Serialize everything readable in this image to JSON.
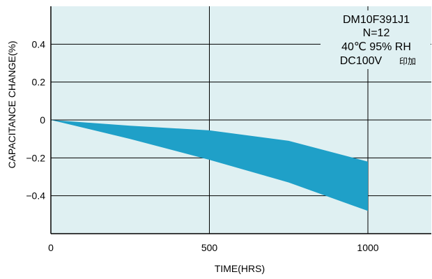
{
  "chart_data": {
    "type": "area",
    "xlabel": "TIME(HRS)",
    "ylabel": "CAPACITANCE CHANGE(%)",
    "xlim": [
      0,
      1200
    ],
    "ylim": [
      -0.6,
      0.6
    ],
    "x_ticks": [
      "0",
      "500",
      "1000"
    ],
    "y_ticks": [
      "0.4",
      "0.2",
      "0",
      "−0.2",
      "−0.4"
    ],
    "grid": true,
    "band": {
      "x": [
        0,
        250,
        500,
        750,
        1000
      ],
      "upper": [
        0,
        -0.03,
        -0.055,
        -0.11,
        -0.22
      ],
      "lower": [
        0,
        -0.1,
        -0.21,
        -0.33,
        -0.48
      ]
    },
    "annotation": {
      "lines": [
        "DM10F391J1",
        "N=12",
        "40℃ 95% RH",
        "DC100V"
      ],
      "suffix": "印加"
    }
  },
  "colors": {
    "plot_background": "#dff0f2",
    "band_fill": "#1fa0c8",
    "grid": "#000000"
  }
}
